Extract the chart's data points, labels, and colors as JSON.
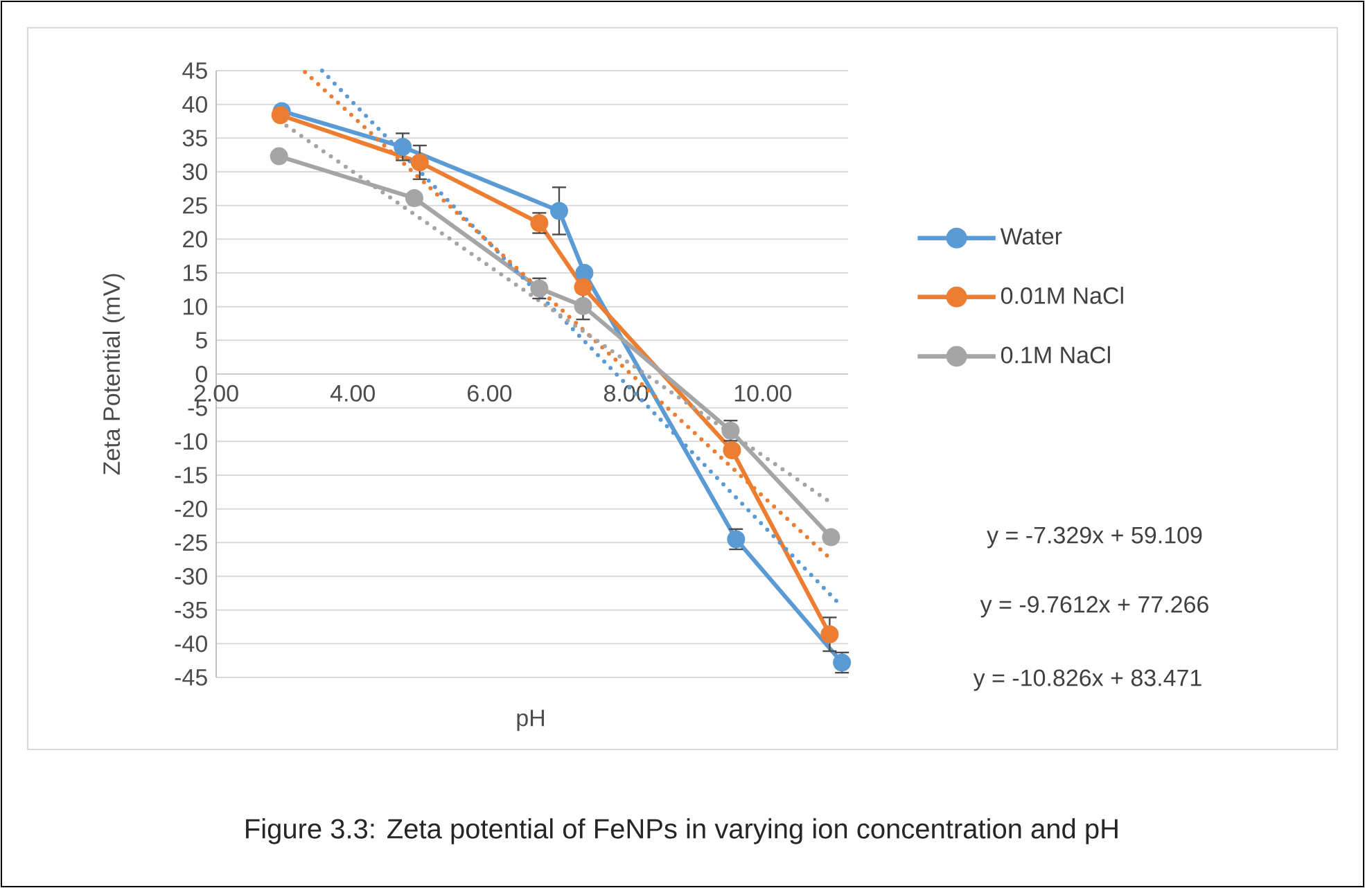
{
  "chart_data": {
    "type": "line",
    "title": "Figure 3.3: Zeta potential of FeNPs in varying ion concentration and pH",
    "xlabel": "pH",
    "ylabel": "Zeta Potential (mV)",
    "xlim": [
      2,
      11.25
    ],
    "ylim": [
      -45,
      45
    ],
    "xticks": [
      {
        "value": 2,
        "label": "2.00"
      },
      {
        "value": 4,
        "label": "4.00"
      },
      {
        "value": 6,
        "label": "6.00"
      },
      {
        "value": 8,
        "label": "8.00"
      },
      {
        "value": 10,
        "label": "10.00"
      }
    ],
    "yticks": [
      -45,
      -40,
      -35,
      -30,
      -25,
      -20,
      -15,
      -10,
      -5,
      0,
      5,
      10,
      15,
      20,
      25,
      30,
      35,
      40,
      45
    ],
    "grid": "y",
    "legend": "right",
    "marker": "circle",
    "line_style": "solid",
    "series": [
      {
        "name": "Water",
        "color": "#5b9bd5",
        "x": [
          2.96,
          4.73,
          7.02,
          7.39,
          9.61,
          11.16
        ],
        "values": [
          39,
          33.7,
          24.2,
          15,
          -24.5,
          -42.8
        ],
        "errors": [
          null,
          2,
          3.5,
          null,
          1.5,
          1.5
        ]
      },
      {
        "name": "0.01M NaCl",
        "color": "#ed7d31",
        "x": [
          2.94,
          4.98,
          6.73,
          7.37,
          9.55,
          10.98
        ],
        "values": [
          38.4,
          31.4,
          22.4,
          12.9,
          -11.3,
          -38.6
        ],
        "errors": [
          null,
          2.5,
          1.5,
          null,
          null,
          2.5
        ]
      },
      {
        "name": "0.1M NaCl",
        "color": "#a5a5a5",
        "x": [
          2.92,
          4.9,
          6.73,
          7.37,
          9.53,
          11.0
        ],
        "values": [
          32.3,
          26.1,
          12.7,
          10.1,
          -8.4,
          -24.2
        ],
        "errors": [
          null,
          null,
          1.5,
          2,
          1.5,
          null
        ]
      },
      {
        "type": "line",
        "color": "#5b9bd5",
        "x": [
          3.55,
          11.16
        ],
        "values": [
          45,
          -34.5
        ],
        "marker": "none",
        "line_style": "dotted"
      },
      {
        "type": "line",
        "color": "#ed7d31",
        "x": [
          3.3,
          10.98
        ],
        "values": [
          44.8,
          -27.3
        ],
        "marker": "none",
        "line_style": "dotted"
      },
      {
        "type": "line",
        "color": "#a5a5a5",
        "x": [
          2.92,
          11.0
        ],
        "values": [
          37.6,
          -19.1
        ],
        "marker": "none",
        "line_style": "dotted"
      }
    ],
    "annotations": [
      "y = -7.329x + 59.109",
      "y = -9.7612x + 77.266",
      "y = -10.826x + 83.471"
    ]
  }
}
